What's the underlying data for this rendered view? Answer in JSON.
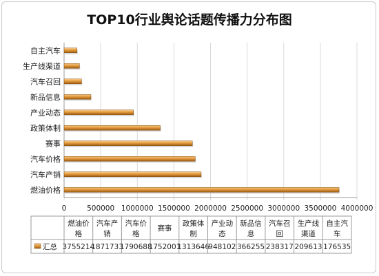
{
  "chart_data": {
    "type": "bar",
    "title": "TOP10行业舆论话题传播力分布图",
    "categories": [
      "燃油价格",
      "汽车产销",
      "汽车价格",
      "赛事",
      "政策体制",
      "产业动态",
      "新品信息",
      "汽车召回",
      "生产线渠道",
      "自主汽车"
    ],
    "table_headers": [
      "燃油价\n格",
      "汽车产\n销",
      "汽车价\n格",
      "赛事",
      "政策体\n制",
      "产业动\n态",
      "新品信\n息",
      "汽车召\n回",
      "生产线\n渠道",
      "自主汽\n车"
    ],
    "table_values": [
      "3755214",
      "1871733",
      "1790688",
      "1752001",
      "1313646",
      "948102",
      "366255",
      "238317",
      "209613",
      "176535"
    ],
    "series": [
      {
        "name": "汇总",
        "values": [
          3755214,
          1871733,
          1790688,
          1752001,
          1313646,
          948102,
          366255,
          238317,
          209613,
          176535
        ]
      }
    ],
    "xlim": [
      0,
      4000000
    ],
    "xticks": [
      "0",
      "500000",
      "1000000",
      "1500000",
      "2000000",
      "2500000",
      "3000000",
      "3500000",
      "4000000"
    ],
    "grid": true,
    "bar_color": "#e39a3b",
    "legend_position": "bottom-table"
  }
}
